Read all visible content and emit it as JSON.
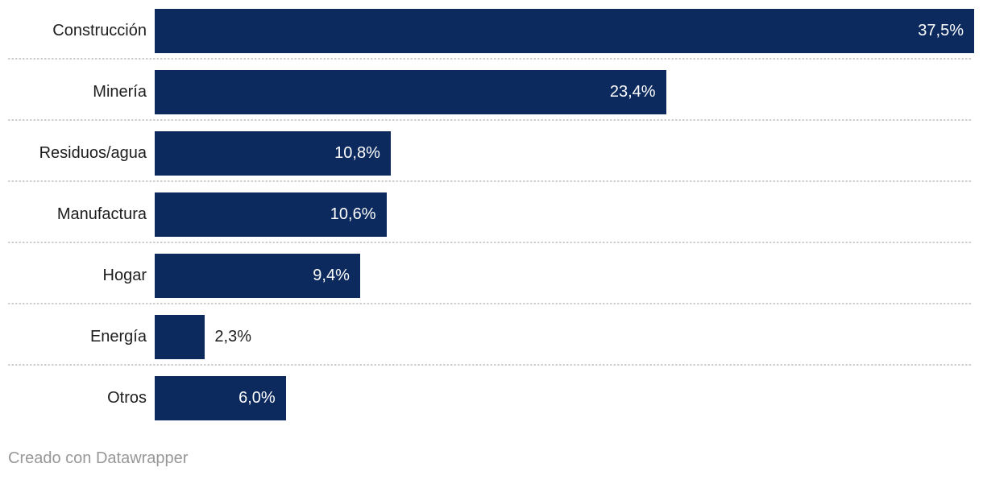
{
  "chart_data": {
    "type": "bar",
    "orientation": "horizontal",
    "title": "",
    "xlabel": "",
    "ylabel": "",
    "categories": [
      "Construcción",
      "Minería",
      "Residuos/agua",
      "Manufactura",
      "Hogar",
      "Energía",
      "Otros"
    ],
    "values": [
      37.5,
      23.4,
      10.8,
      10.6,
      9.4,
      2.3,
      6.0
    ],
    "value_labels": [
      "37,5%",
      "23,4%",
      "10,8%",
      "10,6%",
      "9,4%",
      "2,3%",
      "6,0%"
    ],
    "xlim": [
      0,
      37.5
    ],
    "bar_color": "#0c2a5e",
    "label_color": "#1d1d1d",
    "value_inside_color": "#ffffff",
    "separator_color": "#cfcfcf",
    "grid": "dotted horizontal row separators",
    "legend": "none"
  },
  "footer": {
    "credit": "Creado con Datawrapper"
  }
}
